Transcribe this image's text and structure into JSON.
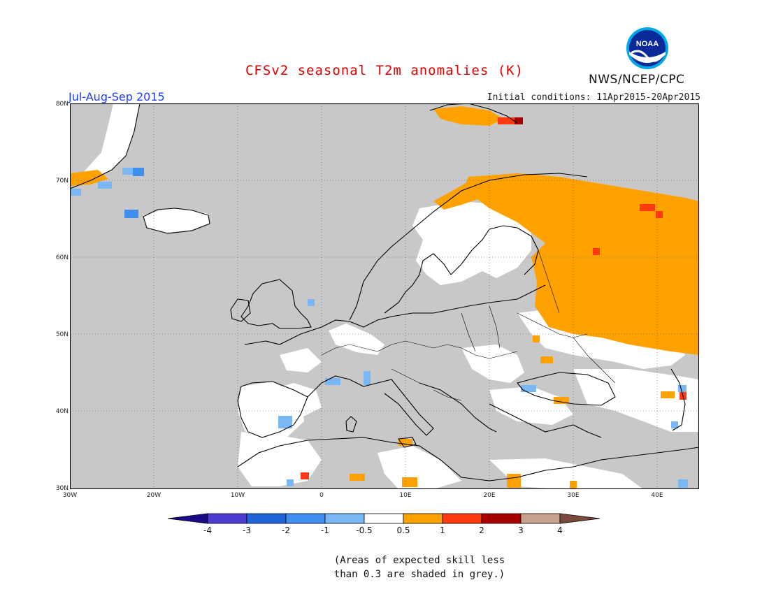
{
  "header": {
    "title": "CFSv2 seasonal T2m anomalies (K)",
    "org": "NWS/NCEP/CPC",
    "logo_text": "NOAA",
    "period": "Jul-Aug-Sep 2015",
    "initial_conditions": "Initial conditions: 11Apr2015-20Apr2015"
  },
  "axes": {
    "lat_ticks": [
      "80N",
      "70N",
      "60N",
      "50N",
      "40N",
      "30N"
    ],
    "lon_ticks": [
      "30W",
      "20W",
      "10W",
      "0",
      "10E",
      "20E",
      "30E",
      "40E"
    ],
    "lon_range": [
      -30,
      45
    ],
    "lat_range": [
      30,
      80
    ]
  },
  "colorbar": {
    "labels": [
      "-4",
      "-3",
      "-2",
      "-1",
      "-0.5",
      "0.5",
      "1",
      "2",
      "3",
      "4"
    ],
    "colors": [
      "#1a0a8a",
      "#4b3bd0",
      "#1f63d8",
      "#3f8ff0",
      "#7ab8f5",
      "#ffffff",
      "#ffa200",
      "#ff3a12",
      "#a80000",
      "#c8a090",
      "#7a4a3a"
    ]
  },
  "colors": {
    "ocean_skill_low": "#c8c8c8",
    "coast": "#000000",
    "warm": "#ffa200",
    "warmer": "#ff3a12",
    "hot": "#a80000",
    "cool": "#7ab8f5",
    "cooler": "#3f8ff0"
  },
  "note": {
    "line1": "(Areas of expected skill less",
    "line2": "than 0.3 are shaded in grey.)"
  }
}
